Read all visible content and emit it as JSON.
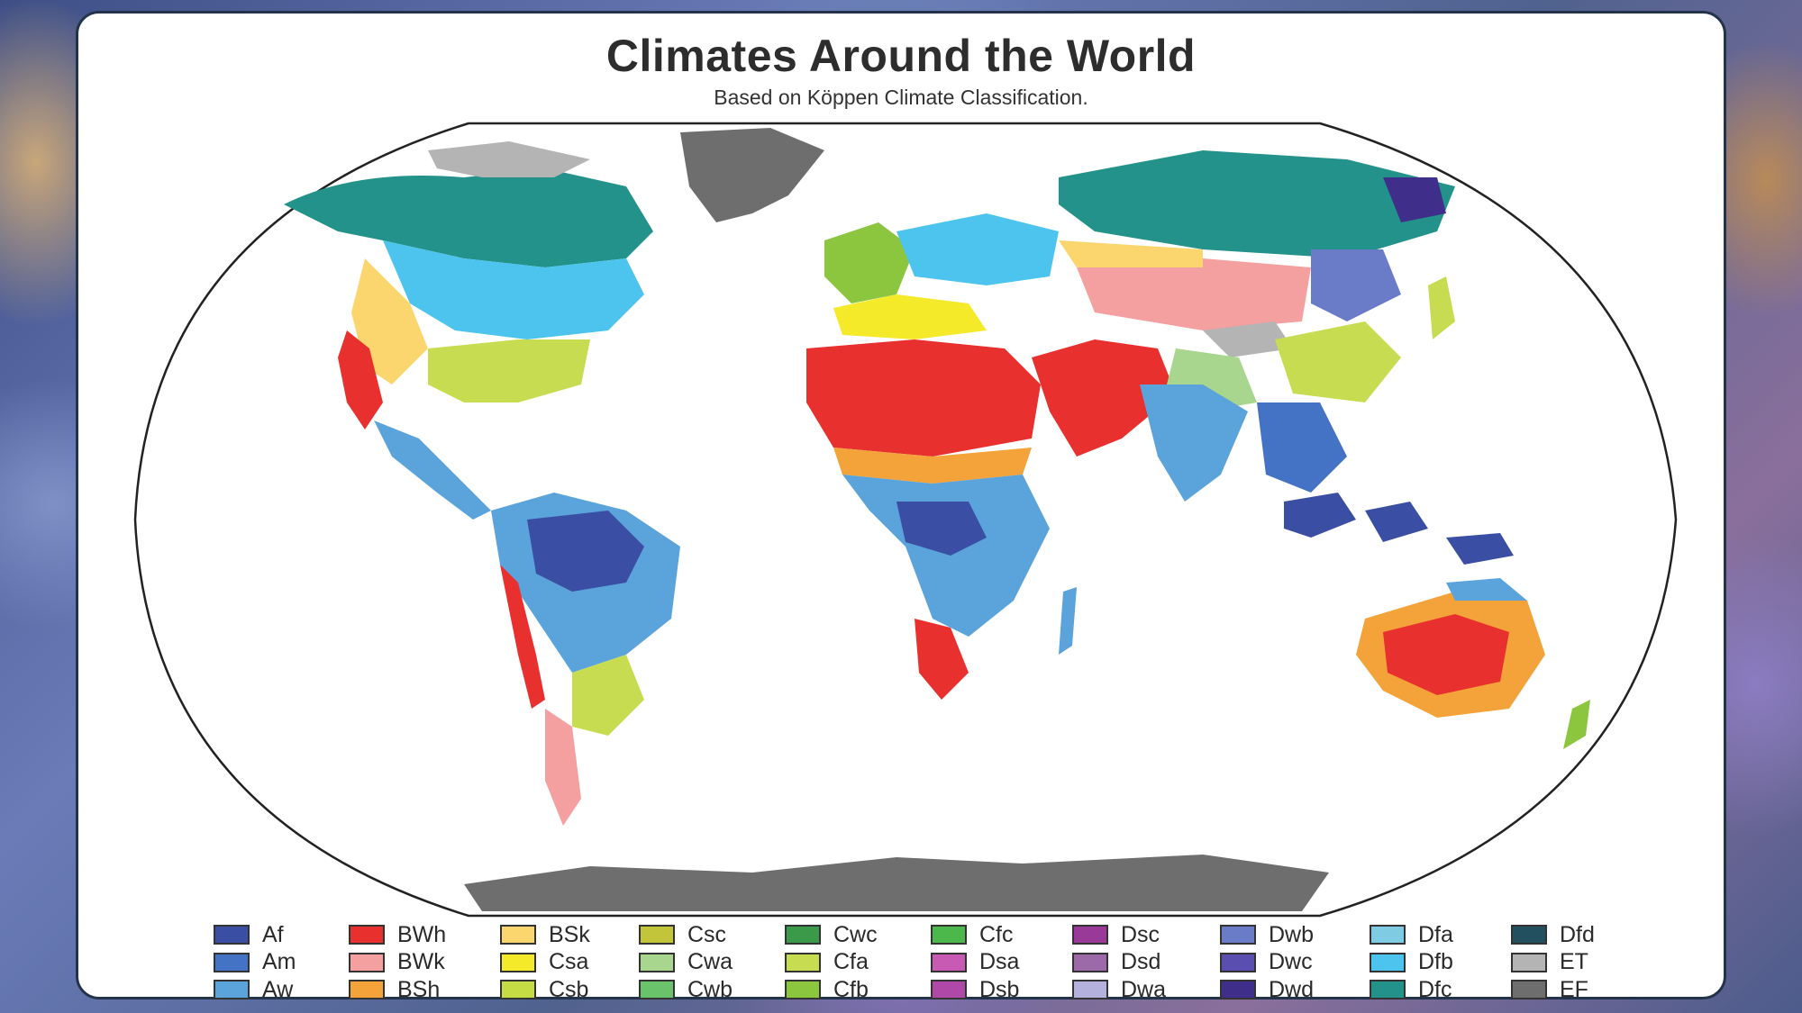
{
  "title": "Climates Around the World",
  "subtitle": "Based on Köppen Climate Classification.",
  "map": {
    "projection": "robinson",
    "ocean_color": "#ffffff",
    "outline_color": "#222222"
  },
  "legend": {
    "columns": [
      [
        {
          "code": "Af",
          "color": "#3a4fa3"
        },
        {
          "code": "Am",
          "color": "#4472c4"
        },
        {
          "code": "Aw",
          "color": "#5ba3db"
        }
      ],
      [
        {
          "code": "BWh",
          "color": "#e8302e"
        },
        {
          "code": "BWk",
          "color": "#f4a0a0"
        },
        {
          "code": "BSh",
          "color": "#f4a23a"
        }
      ],
      [
        {
          "code": "BSk",
          "color": "#fbd56e"
        },
        {
          "code": "Csa",
          "color": "#f4ea2a"
        },
        {
          "code": "Csb",
          "color": "#c6dc45"
        }
      ],
      [
        {
          "code": "Csc",
          "color": "#c2c43a"
        },
        {
          "code": "Cwa",
          "color": "#a8d68e"
        },
        {
          "code": "Cwb",
          "color": "#6ac26a"
        }
      ],
      [
        {
          "code": "Cwc",
          "color": "#3a9a4a"
        },
        {
          "code": "Cfa",
          "color": "#c8dc52"
        },
        {
          "code": "Cfb",
          "color": "#8cc63f"
        }
      ],
      [
        {
          "code": "Cfc",
          "color": "#4cb84c"
        },
        {
          "code": "Dsa",
          "color": "#c85ab4"
        },
        {
          "code": "Dsb",
          "color": "#b048a8"
        }
      ],
      [
        {
          "code": "Dsc",
          "color": "#9a3a98"
        },
        {
          "code": "Dsd",
          "color": "#9c6aa8"
        },
        {
          "code": "Dwa",
          "color": "#b4b2dc"
        }
      ],
      [
        {
          "code": "Dwb",
          "color": "#6a7cc8"
        },
        {
          "code": "Dwc",
          "color": "#5a4fb0"
        },
        {
          "code": "Dwd",
          "color": "#3f2f8a"
        }
      ],
      [
        {
          "code": "Dfa",
          "color": "#7fcbe4"
        },
        {
          "code": "Dfb",
          "color": "#4cc4ee"
        },
        {
          "code": "Dfc",
          "color": "#23928a"
        }
      ],
      [
        {
          "code": "Dfd",
          "color": "#23505e"
        },
        {
          "code": "ET",
          "color": "#b4b4b4"
        },
        {
          "code": "EF",
          "color": "#6e6e6e"
        }
      ]
    ]
  }
}
